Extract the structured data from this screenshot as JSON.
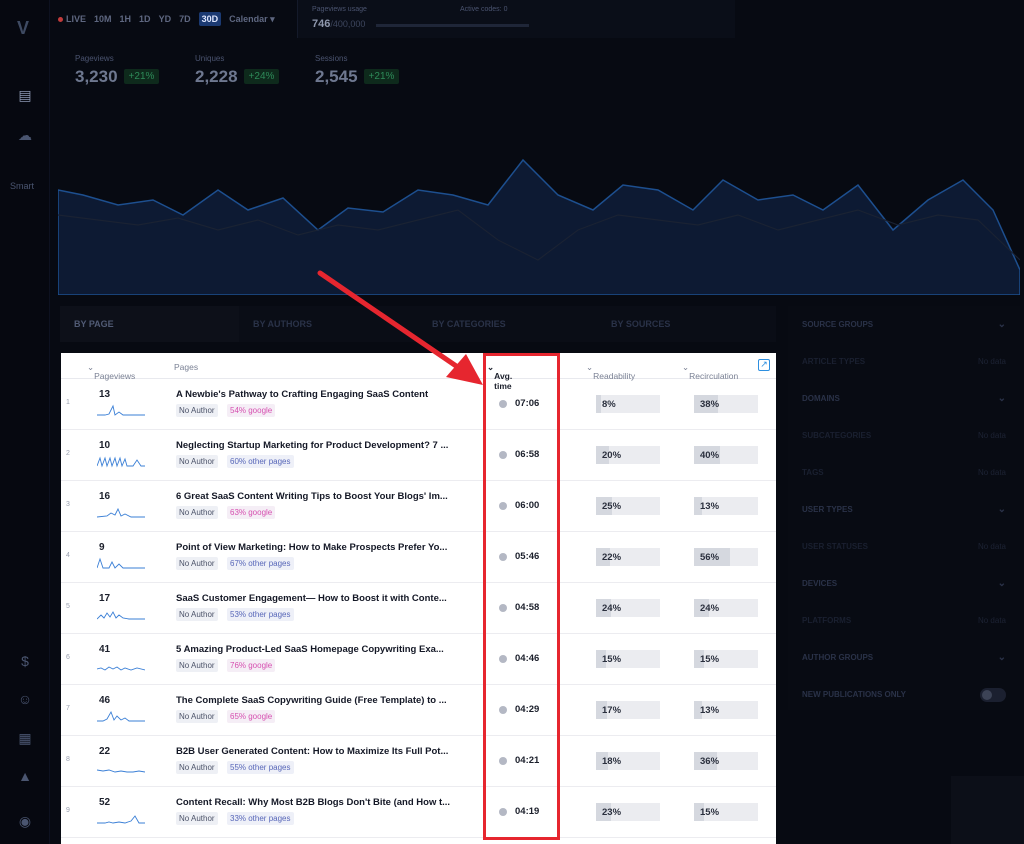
{
  "rail": {
    "logo": "V",
    "smart_label": "Smart"
  },
  "topbar": {
    "live": "LIVE",
    "ranges": [
      "10M",
      "1H",
      "1D",
      "YD",
      "7D",
      "30D"
    ],
    "selected_range": "30D",
    "calendar": "Calendar",
    "usage_label": "Pageviews usage",
    "usage_value": "746",
    "usage_total": "/400,000",
    "active_codes": "Active codes: 0"
  },
  "metrics": [
    {
      "name": "Pageviews",
      "value": "3,230",
      "delta": "+21%"
    },
    {
      "name": "Uniques",
      "value": "2,228",
      "delta": "+24%"
    },
    {
      "name": "Sessions",
      "value": "2,545",
      "delta": "+21%"
    }
  ],
  "tabs": [
    "BY PAGE",
    "BY AUTHORS",
    "BY CATEGORIES",
    "BY SOURCES"
  ],
  "filters": [
    {
      "label": "SOURCE GROUPS",
      "extra": "chevron"
    },
    {
      "label": "ARTICLE TYPES",
      "extra": "No data"
    },
    {
      "label": "DOMAINS",
      "extra": "chevron"
    },
    {
      "label": "SUBCATEGORIES",
      "extra": "No data"
    },
    {
      "label": "TAGS",
      "extra": "No data"
    },
    {
      "label": "USER TYPES",
      "extra": "chevron"
    },
    {
      "label": "USER STATUSES",
      "extra": "No data"
    },
    {
      "label": "DEVICES",
      "extra": "chevron"
    },
    {
      "label": "PLATFORMS",
      "extra": "No data"
    },
    {
      "label": "AUTHOR GROUPS",
      "extra": "chevron"
    },
    {
      "label": "NEW PUBLICATIONS ONLY",
      "extra": "toggle"
    }
  ],
  "table": {
    "headers": {
      "pageviews": "Pageviews",
      "pages": "Pages",
      "avg_time": "Avg. time",
      "readability": "Readability",
      "recirculation": "Recirculation"
    },
    "rows": [
      {
        "idx": "1",
        "pv": "13",
        "title": "A Newbie's Pathway to Crafting Engaging SaaS Content",
        "author": "No Author",
        "source": "54% google",
        "src_type": "google",
        "time": "07:06",
        "read": "8%",
        "read_v": 8,
        "recirc": "38%",
        "recirc_v": 38
      },
      {
        "idx": "2",
        "pv": "10",
        "title": "Neglecting Startup Marketing for Product Development? 7 ...",
        "author": "No Author",
        "source": "60% other pages",
        "src_type": "other",
        "time": "06:58",
        "read": "20%",
        "read_v": 20,
        "recirc": "40%",
        "recirc_v": 40
      },
      {
        "idx": "3",
        "pv": "16",
        "title": "6 Great SaaS Content Writing Tips to Boost Your Blogs' Im...",
        "author": "No Author",
        "source": "63% google",
        "src_type": "google",
        "time": "06:00",
        "read": "25%",
        "read_v": 25,
        "recirc": "13%",
        "recirc_v": 13
      },
      {
        "idx": "4",
        "pv": "9",
        "title": "Point of View Marketing: How to Make Prospects Prefer Yo...",
        "author": "No Author",
        "source": "67% other pages",
        "src_type": "other",
        "time": "05:46",
        "read": "22%",
        "read_v": 22,
        "recirc": "56%",
        "recirc_v": 56
      },
      {
        "idx": "5",
        "pv": "17",
        "title": "SaaS Customer Engagement— How to Boost it with Conte...",
        "author": "No Author",
        "source": "53% other pages",
        "src_type": "other",
        "time": "04:58",
        "read": "24%",
        "read_v": 24,
        "recirc": "24%",
        "recirc_v": 24
      },
      {
        "idx": "6",
        "pv": "41",
        "title": "5 Amazing Product-Led SaaS Homepage Copywriting Exa...",
        "author": "No Author",
        "source": "76% google",
        "src_type": "google",
        "time": "04:46",
        "read": "15%",
        "read_v": 15,
        "recirc": "15%",
        "recirc_v": 15
      },
      {
        "idx": "7",
        "pv": "46",
        "title": "The Complete SaaS Copywriting Guide (Free Template) to ...",
        "author": "No Author",
        "source": "65% google",
        "src_type": "google",
        "time": "04:29",
        "read": "17%",
        "read_v": 17,
        "recirc": "13%",
        "recirc_v": 13
      },
      {
        "idx": "8",
        "pv": "22",
        "title": "B2B User Generated Content: How to Maximize Its Full Pot...",
        "author": "No Author",
        "source": "55% other pages",
        "src_type": "other",
        "time": "04:21",
        "read": "18%",
        "read_v": 18,
        "recirc": "36%",
        "recirc_v": 36
      },
      {
        "idx": "9",
        "pv": "52",
        "title": "Content Recall: Why Most B2B Blogs Don't Bite (and How t...",
        "author": "No Author",
        "source": "33% other pages",
        "src_type": "other",
        "time": "04:19",
        "read": "23%",
        "read_v": 23,
        "recirc": "15%",
        "recirc_v": 15
      }
    ]
  },
  "colors": {
    "highlight": "#e6262f",
    "accent": "#2d8fe0"
  }
}
